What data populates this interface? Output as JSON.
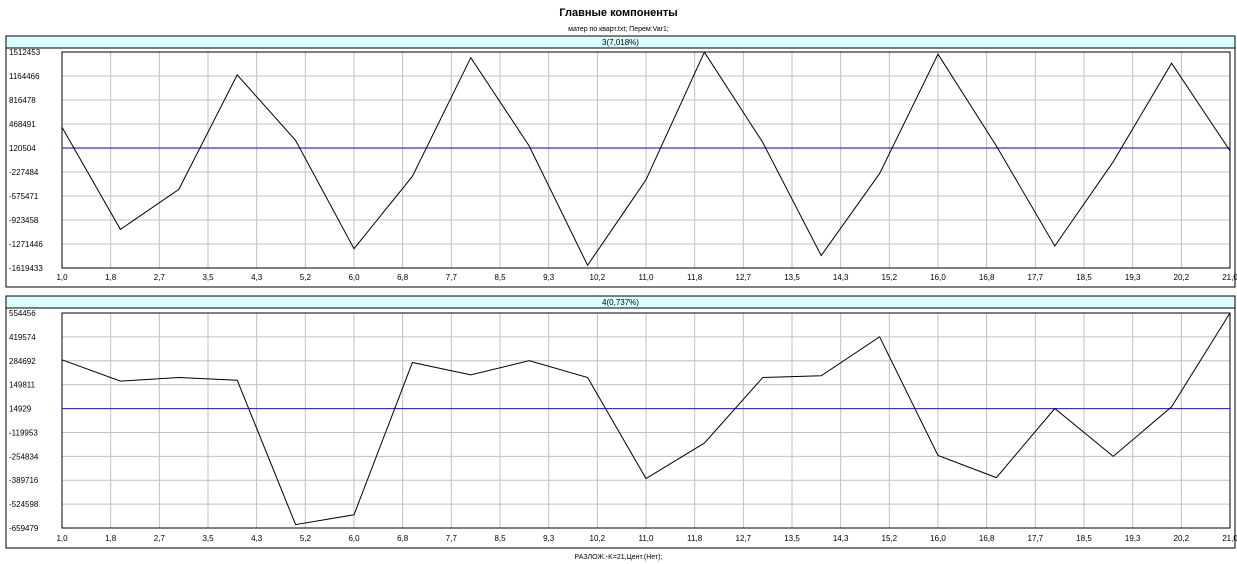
{
  "header": {
    "title": "Главные компоненты",
    "subtitle": "матер по кварт.txt;   Перем:Var1;"
  },
  "footer": {
    "text": "РАЗЛОЖ.-K=21,Цент.(Нет);"
  },
  "colors": {
    "panel_title_bg": "#d9ffff",
    "grid": "#c0c0c0",
    "series_line": "#000000",
    "zero_line": "#3333cc",
    "frame": "#000000"
  },
  "chart_data": [
    {
      "type": "line",
      "title": "3(7,018%)",
      "x": [
        1,
        2,
        3,
        4,
        5,
        6,
        7,
        8,
        9,
        10,
        11,
        12,
        13,
        14,
        15,
        16,
        17,
        18,
        19,
        20,
        21
      ],
      "series": [
        {
          "values": [
            420000,
            -1060000,
            -480000,
            1180000,
            230000,
            -1340000,
            -290000,
            1430000,
            150000,
            -1580000,
            -340000,
            1510000,
            200000,
            -1440000,
            -250000,
            1480000,
            150000,
            -1300000,
            -80000,
            1350000,
            80000
          ]
        }
      ],
      "reference_line": 120504,
      "xlim": [
        1.0,
        21.0
      ],
      "ylim": [
        -1619433,
        1512453
      ],
      "x_tick_labels": [
        "1,0",
        "1,8",
        "2,7",
        "3,5",
        "4,3",
        "5,2",
        "6,0",
        "6,8",
        "7,7",
        "8,5",
        "9,3",
        "10,2",
        "11,0",
        "11,8",
        "12,7",
        "13,5",
        "14,3",
        "15,2",
        "16,0",
        "16,8",
        "17,7",
        "18,5",
        "19,3",
        "20,2",
        "21,0"
      ],
      "y_tick_labels": [
        "1512453",
        "1164466",
        "816478",
        "468491",
        "120504",
        "-227484",
        "-575471",
        "-923458",
        "-1271446",
        "-1619433"
      ],
      "grid": true
    },
    {
      "type": "line",
      "title": "4(0,737%)",
      "x": [
        1,
        2,
        3,
        4,
        5,
        6,
        7,
        8,
        9,
        10,
        11,
        12,
        13,
        14,
        15,
        16,
        17,
        18,
        19,
        20,
        21
      ],
      "series": [
        {
          "values": [
            290000,
            170000,
            190000,
            175000,
            -640000,
            -585000,
            275000,
            205000,
            285000,
            190000,
            -380000,
            -180000,
            190000,
            200000,
            420000,
            -250000,
            -375000,
            15000,
            -255000,
            25000,
            554456
          ]
        }
      ],
      "reference_line": 14929,
      "xlim": [
        1.0,
        21.0
      ],
      "ylim": [
        -659479,
        554456
      ],
      "x_tick_labels": [
        "1,0",
        "1,8",
        "2,7",
        "3,5",
        "4,3",
        "5,2",
        "6,0",
        "6,8",
        "7,7",
        "8,5",
        "9,3",
        "10,2",
        "11,0",
        "11,8",
        "12,7",
        "13,5",
        "14,3",
        "15,2",
        "16,0",
        "16,8",
        "17,7",
        "18,5",
        "19,3",
        "20,2",
        "21,0"
      ],
      "y_tick_labels": [
        "554456",
        "419574",
        "284692",
        "149811",
        "14929",
        "-119953",
        "-254834",
        "-389716",
        "-524598",
        "-659479"
      ],
      "grid": true
    }
  ]
}
